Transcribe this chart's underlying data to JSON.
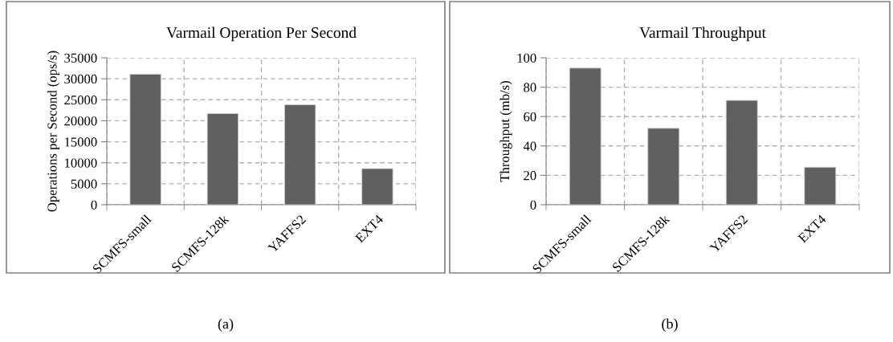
{
  "chart_data": [
    {
      "type": "bar",
      "title": "Varmail Operation Per Second",
      "ylabel": "Operations per Second (ops/s)",
      "categories": [
        "SCMFS-small",
        "SCMFS-128k",
        "YAFFS2",
        "EXT4"
      ],
      "values": [
        31100,
        21700,
        23800,
        8600
      ],
      "color": "#606060",
      "ylim": [
        0,
        35000
      ],
      "yticks": [
        0,
        5000,
        10000,
        15000,
        20000,
        25000,
        30000,
        35000
      ],
      "grid": true,
      "annotations": [
        "(a)"
      ]
    },
    {
      "type": "bar",
      "title": "Varmail Throughput",
      "ylabel": "Throughput (mb/s)",
      "categories": [
        "SCMFS-small",
        "SCMFS-128k",
        "YAFFS2",
        "EXT4"
      ],
      "values": [
        93,
        52,
        71,
        25.5
      ],
      "color": "#606060",
      "ylim": [
        0,
        100
      ],
      "yticks": [
        0,
        20,
        40,
        60,
        80,
        100
      ],
      "grid": true,
      "annotations": [
        "(b)"
      ]
    }
  ]
}
